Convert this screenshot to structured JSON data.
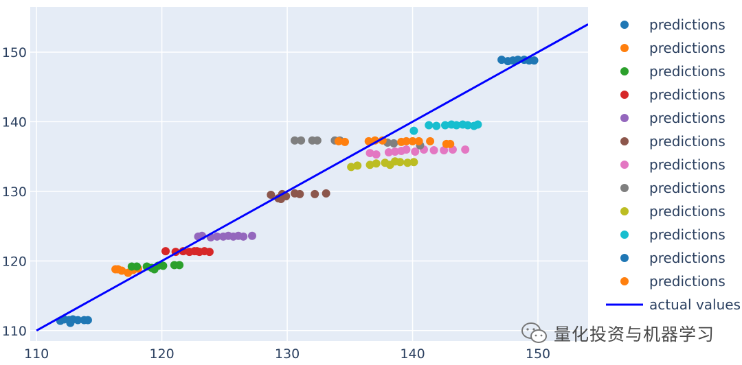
{
  "chart_data": {
    "type": "scatter",
    "title": "",
    "xlabel": "",
    "ylabel": "",
    "xlim": [
      109.5,
      154
    ],
    "ylim": [
      108.5,
      156.5
    ],
    "x_ticks": [
      110,
      120,
      130,
      140,
      150
    ],
    "y_ticks": [
      110,
      120,
      130,
      140,
      150
    ],
    "grid": true,
    "legend_position": "right",
    "series": [
      {
        "name": "predictions",
        "color": "#1f77b4",
        "x": [
          111.9,
          112.2,
          112.6,
          112.9,
          113.3,
          113.8,
          114.1,
          112.7
        ],
        "y": [
          111.4,
          111.6,
          111.5,
          111.6,
          111.5,
          111.5,
          111.5,
          111.1
        ]
      },
      {
        "name": "predictions",
        "color": "#ff7f0e",
        "x": [
          116.3,
          116.8,
          117.3,
          117.7,
          118.1,
          116.5
        ],
        "y": [
          118.8,
          118.6,
          118.3,
          118.7,
          118.9,
          118.8
        ]
      },
      {
        "name": "predictions",
        "color": "#2ca02c",
        "x": [
          117.6,
          118.0,
          118.8,
          119.2,
          119.7,
          120.1,
          121.0,
          121.4,
          119.4
        ],
        "y": [
          119.2,
          119.2,
          119.2,
          119.0,
          119.3,
          119.3,
          119.4,
          119.4,
          118.8
        ]
      },
      {
        "name": "predictions",
        "color": "#d62728",
        "x": [
          120.3,
          121.1,
          121.7,
          122.2,
          122.6,
          123.0,
          123.4,
          123.8,
          122.8
        ],
        "y": [
          121.4,
          121.3,
          121.4,
          121.3,
          121.4,
          121.3,
          121.4,
          121.3,
          121.4
        ]
      },
      {
        "name": "predictions",
        "color": "#9467bd",
        "x": [
          122.9,
          123.2,
          123.9,
          124.4,
          124.9,
          125.3,
          125.7,
          126.1,
          126.5,
          127.2
        ],
        "y": [
          123.5,
          123.6,
          123.4,
          123.5,
          123.5,
          123.6,
          123.5,
          123.6,
          123.5,
          123.6
        ]
      },
      {
        "name": "predictions",
        "color": "#8c564b",
        "x": [
          128.7,
          129.3,
          129.6,
          129.9,
          130.6,
          131.0,
          132.2,
          133.1,
          129.5
        ],
        "y": [
          129.5,
          129.0,
          129.6,
          129.3,
          129.7,
          129.6,
          129.6,
          129.7,
          128.9
        ]
      },
      {
        "name": "predictions",
        "color": "#e377c2",
        "x": [
          136.6,
          137.1,
          138.1,
          138.6,
          139.1,
          139.5,
          140.2,
          140.9,
          141.7,
          142.5,
          143.2,
          144.2
        ],
        "y": [
          135.5,
          135.3,
          135.6,
          135.7,
          135.8,
          136.0,
          135.7,
          136.0,
          135.9,
          135.9,
          136.0,
          136.0
        ]
      },
      {
        "name": "predictions",
        "color": "#7f7f7f",
        "x": [
          130.6,
          131.1,
          132.0,
          132.4,
          133.8,
          134.2,
          138.0,
          138.5,
          140.6
        ],
        "y": [
          137.3,
          137.3,
          137.3,
          137.3,
          137.3,
          137.3,
          137.0,
          136.9,
          136.6
        ]
      },
      {
        "name": "predictions",
        "color": "#bcbd22",
        "x": [
          135.1,
          135.6,
          136.6,
          137.1,
          137.8,
          138.2,
          138.6,
          139.0,
          139.6,
          140.1
        ],
        "y": [
          133.5,
          133.7,
          133.8,
          134.0,
          134.1,
          133.8,
          134.3,
          134.2,
          134.1,
          134.2
        ]
      },
      {
        "name": "predictions",
        "color": "#17becf",
        "x": [
          140.1,
          141.3,
          141.9,
          142.6,
          143.1,
          143.5,
          144.0,
          144.4,
          144.9,
          145.2
        ],
        "y": [
          138.7,
          139.5,
          139.4,
          139.5,
          139.6,
          139.5,
          139.6,
          139.5,
          139.4,
          139.6
        ]
      },
      {
        "name": "predictions",
        "color": "#1f77b4",
        "x": [
          147.1,
          147.6,
          148.0,
          148.4,
          148.9,
          149.3,
          149.7
        ],
        "y": [
          148.9,
          148.7,
          148.8,
          148.9,
          148.9,
          148.8,
          148.8
        ]
      },
      {
        "name": "predictions",
        "color": "#ff7f0e",
        "x": [
          134.1,
          134.6,
          136.5,
          137.0,
          137.6,
          139.1,
          139.5,
          140.0,
          140.5,
          141.4,
          142.7,
          143.0
        ],
        "y": [
          137.2,
          137.1,
          137.2,
          137.3,
          137.3,
          137.1,
          137.2,
          137.2,
          137.2,
          137.2,
          136.8,
          136.8
        ]
      }
    ],
    "line": {
      "name": "actual values",
      "color": "#0000ff",
      "x": [
        110,
        154
      ],
      "y": [
        110,
        154
      ]
    }
  },
  "watermark": {
    "text": "量化投资与机器学习",
    "icon": "wechat-icon"
  }
}
